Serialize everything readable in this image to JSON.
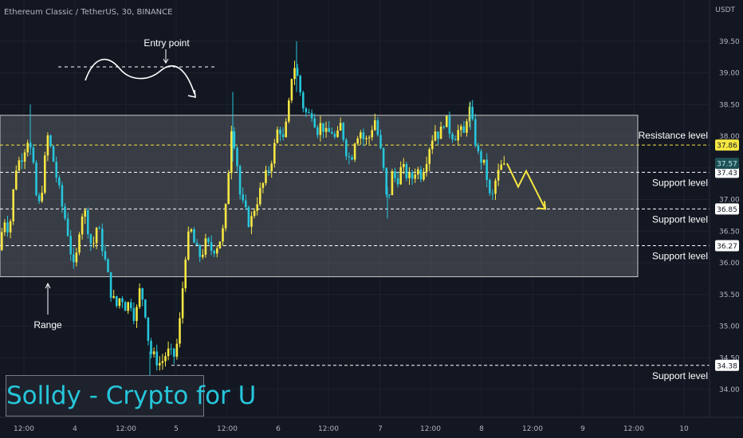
{
  "header": {
    "title": "Ethereum Classic / TetherUS, 30, BINANCE",
    "currency": "USDT"
  },
  "watermark": "Solldy - Crypto for U",
  "colors": {
    "background": "#131722",
    "bull": "#f5e642",
    "bear": "#26c6da",
    "text": "#b2b5be",
    "grid": "#1e222d",
    "range_box": "#ffffff",
    "annotation_white": "#ffffff",
    "annotation_yellow": "#f5e642"
  },
  "annotations": {
    "entry_point": "Entry point",
    "range": "Range",
    "levels": [
      {
        "name": "Resistance level",
        "value": 37.86,
        "tag": "37.86",
        "style": "yellow"
      },
      {
        "name": "Support level",
        "value": 37.43,
        "tag": "37.43",
        "style": "white"
      },
      {
        "name": "Support level",
        "value": 36.85,
        "tag": "36.85",
        "style": "white"
      },
      {
        "name": "Support level",
        "value": 36.27,
        "tag": "36.27",
        "style": "white"
      },
      {
        "name": "Support level",
        "value": 34.38,
        "tag": "34.38",
        "style": "white"
      }
    ],
    "last_price_tag": "37.57",
    "last_price": 37.57
  },
  "chart_data": {
    "type": "candlestick",
    "title": "Ethereum Classic / TetherUS, 30, BINANCE",
    "ylabel": "USDT",
    "ylim": [
      33.55,
      40.0
    ],
    "y_ticks": [
      "34.00",
      "34.50",
      "35.00",
      "35.50",
      "36.00",
      "36.50",
      "37.00",
      "37.50",
      "38.00",
      "38.50",
      "39.00",
      "39.50"
    ],
    "x_ticks": [
      "12:00",
      "4",
      "12:00",
      "5",
      "12:00",
      "6",
      "12:00",
      "7",
      "12:00",
      "8",
      "12:00",
      "9",
      "12:00",
      "10"
    ],
    "range_box": {
      "top": 38.33,
      "bottom": 35.78
    },
    "grid": true,
    "path_points": [
      [
        0,
        36.2
      ],
      [
        8,
        36.7
      ],
      [
        14,
        36.5
      ],
      [
        22,
        37.5
      ],
      [
        30,
        37.7
      ],
      [
        38,
        38.0
      ],
      [
        44,
        37.5
      ],
      [
        50,
        36.8
      ],
      [
        55,
        37.2
      ],
      [
        62,
        38.0
      ],
      [
        68,
        37.7
      ],
      [
        74,
        37.3
      ],
      [
        80,
        36.9
      ],
      [
        86,
        36.6
      ],
      [
        92,
        36.1
      ],
      [
        96,
        35.8
      ],
      [
        101,
        36.5
      ],
      [
        107,
        36.9
      ],
      [
        112,
        36.6
      ],
      [
        118,
        36.2
      ],
      [
        124,
        36.6
      ],
      [
        130,
        36.3
      ],
      [
        136,
        35.9
      ],
      [
        142,
        35.5
      ],
      [
        148,
        35.3
      ],
      [
        154,
        35.5
      ],
      [
        160,
        35.3
      ],
      [
        166,
        35.4
      ],
      [
        172,
        35.1
      ],
      [
        178,
        35.6
      ],
      [
        184,
        35.3
      ],
      [
        190,
        34.6
      ],
      [
        196,
        34.5
      ],
      [
        204,
        34.4
      ],
      [
        212,
        34.6
      ],
      [
        220,
        34.5
      ],
      [
        226,
        34.8
      ],
      [
        230,
        35.4
      ],
      [
        236,
        36.3
      ],
      [
        242,
        36.5
      ],
      [
        248,
        36.2
      ],
      [
        254,
        36.1
      ],
      [
        260,
        36.3
      ],
      [
        268,
        36.2
      ],
      [
        276,
        36.3
      ],
      [
        282,
        36.5
      ],
      [
        287,
        37.0
      ],
      [
        292,
        38.2
      ],
      [
        298,
        37.8
      ],
      [
        304,
        37.0
      ],
      [
        310,
        36.8
      ],
      [
        316,
        36.6
      ],
      [
        322,
        36.9
      ],
      [
        328,
        37.1
      ],
      [
        334,
        37.3
      ],
      [
        340,
        37.5
      ],
      [
        346,
        37.8
      ],
      [
        352,
        38.2
      ],
      [
        358,
        37.9
      ],
      [
        364,
        38.4
      ],
      [
        370,
        39.2
      ],
      [
        376,
        38.9
      ],
      [
        382,
        38.5
      ],
      [
        388,
        38.3
      ],
      [
        394,
        38.4
      ],
      [
        400,
        38.1
      ],
      [
        406,
        38.2
      ],
      [
        412,
        38.0
      ],
      [
        418,
        38.1
      ],
      [
        424,
        37.9
      ],
      [
        430,
        38.2
      ],
      [
        436,
        37.8
      ],
      [
        442,
        37.6
      ],
      [
        448,
        38.0
      ],
      [
        454,
        38.1
      ],
      [
        460,
        37.9
      ],
      [
        466,
        38.0
      ],
      [
        472,
        38.3
      ],
      [
        478,
        37.9
      ],
      [
        484,
        37.4
      ],
      [
        488,
        36.9
      ],
      [
        494,
        37.4
      ],
      [
        500,
        37.3
      ],
      [
        506,
        37.5
      ],
      [
        512,
        37.4
      ],
      [
        518,
        37.3
      ],
      [
        524,
        37.5
      ],
      [
        530,
        37.4
      ],
      [
        536,
        37.6
      ],
      [
        542,
        37.9
      ],
      [
        548,
        38.1
      ],
      [
        554,
        38.0
      ],
      [
        560,
        38.3
      ],
      [
        566,
        38.1
      ],
      [
        572,
        38.0
      ],
      [
        578,
        38.1
      ],
      [
        584,
        38.0
      ],
      [
        590,
        38.5
      ],
      [
        596,
        38.1
      ],
      [
        602,
        37.7
      ],
      [
        608,
        37.6
      ],
      [
        614,
        37.3
      ],
      [
        618,
        36.9
      ],
      [
        624,
        37.3
      ],
      [
        630,
        37.5
      ],
      [
        636,
        37.57
      ]
    ],
    "projection": [
      [
        636,
        37.57
      ],
      [
        650,
        37.2
      ],
      [
        660,
        37.45
      ],
      [
        684,
        36.85
      ]
    ]
  }
}
